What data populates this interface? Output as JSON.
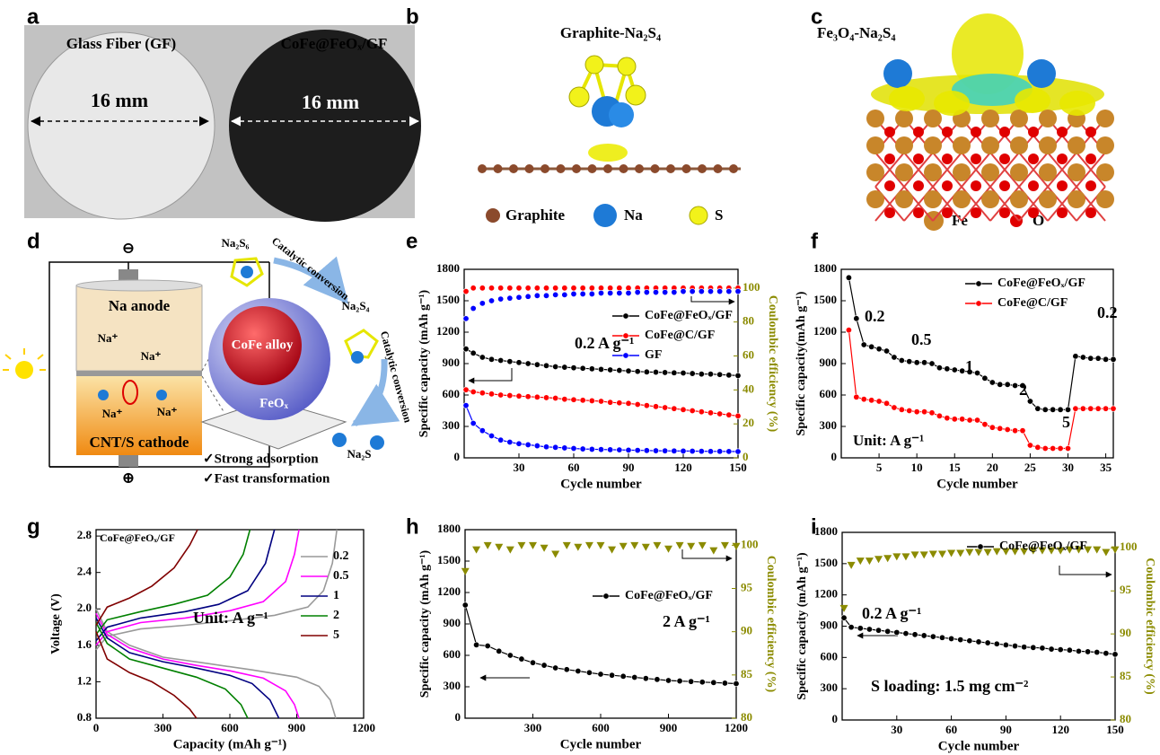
{
  "panel_labels": [
    "a",
    "b",
    "c",
    "d",
    "e",
    "f",
    "g",
    "h",
    "i"
  ],
  "panel_a": {
    "left_label": "Glass Fiber (GF)",
    "right_label": "CoFe@FeOₓ/GF",
    "left_size": "16 mm",
    "right_size": "16 mm"
  },
  "panel_b": {
    "title": "Graphite-Na₂S₄",
    "legend": [
      "Graphite",
      "Na",
      "S"
    ]
  },
  "panel_c": {
    "title": "Fe₃O₄-Na₂S₄",
    "legend": [
      "Fe",
      "O"
    ]
  },
  "panel_d": {
    "anode": "Na anode",
    "cathode": "CNT/S cathode",
    "ions": [
      "Na⁺",
      "Na⁺",
      "Na⁺",
      "Na⁺"
    ],
    "minus": "⊖",
    "plus": "⊕",
    "species": [
      "Na₂S₆",
      "Na₂S₄",
      "Na₂S"
    ],
    "steps": [
      "Catalytic conversion",
      "Catalytic conversion"
    ],
    "core": "CoFe alloy",
    "shell": "FeOₓ",
    "features": [
      "✓Strong adsorption",
      "✓Fast transformation"
    ]
  },
  "chart_data": [
    {
      "type": "line",
      "xlabel": "Cycle number",
      "ylabel": "Specific capacity (mAh g⁻¹)",
      "y2label": "Coulombic efficiency (%)",
      "y2color": "#8b8b00",
      "xlim": [
        0,
        150
      ],
      "xticks": [
        30,
        60,
        90,
        120,
        150
      ],
      "ylim": [
        0,
        1800
      ],
      "yticks": [
        0,
        300,
        600,
        900,
        1200,
        1500,
        1800
      ],
      "y2lim": [
        0,
        111
      ],
      "y2ticks": [
        0,
        20,
        40,
        60,
        80,
        100
      ],
      "legend": "center right",
      "annotations": [
        "0.2 A g⁻¹"
      ],
      "x": [
        1,
        5,
        10,
        15,
        20,
        25,
        30,
        35,
        40,
        45,
        50,
        55,
        60,
        65,
        70,
        75,
        80,
        85,
        90,
        95,
        100,
        105,
        110,
        115,
        120,
        125,
        130,
        135,
        140,
        145,
        150
      ],
      "series": [
        {
          "name": "CoFe@FeOₓ/GF",
          "color": "#000000",
          "marker": "circle",
          "values": [
            1040,
            1000,
            960,
            940,
            930,
            920,
            910,
            900,
            890,
            880,
            870,
            865,
            860,
            855,
            850,
            845,
            840,
            835,
            830,
            825,
            820,
            818,
            815,
            812,
            810,
            805,
            800,
            800,
            795,
            790,
            785
          ]
        },
        {
          "name": "CoFe@C/GF",
          "color": "#ff0000",
          "marker": "circle",
          "values": [
            650,
            630,
            620,
            610,
            600,
            595,
            590,
            585,
            580,
            575,
            570,
            560,
            555,
            550,
            545,
            540,
            530,
            525,
            520,
            510,
            500,
            490,
            480,
            470,
            460,
            450,
            440,
            430,
            420,
            410,
            400
          ]
        },
        {
          "name": "GF",
          "color": "#0000ff",
          "marker": "circle",
          "values": [
            500,
            330,
            260,
            210,
            170,
            150,
            135,
            125,
            115,
            105,
            100,
            95,
            90,
            85,
            82,
            80,
            78,
            76,
            74,
            72,
            70,
            68,
            67,
            66,
            65,
            64,
            63,
            62,
            62,
            61,
            60
          ]
        },
        {
          "color": "#ff0000",
          "axis": "y2",
          "marker": "circle",
          "line": false,
          "values": [
            98,
            100,
            100,
            100,
            100,
            100,
            100,
            100,
            100,
            100,
            100,
            100,
            100,
            100,
            100,
            100,
            100,
            100,
            100,
            100,
            100,
            100,
            100,
            100,
            100,
            100,
            100,
            100,
            100,
            100,
            100
          ]
        },
        {
          "color": "#0000ff",
          "axis": "y2",
          "marker": "circle",
          "line": false,
          "values": [
            82,
            88,
            91,
            92.5,
            93.5,
            94,
            94.5,
            95,
            95.5,
            95.5,
            96,
            96,
            96.5,
            96.5,
            96.5,
            97,
            97,
            97,
            97,
            97.5,
            97.5,
            97.5,
            97.5,
            97.5,
            98,
            98,
            98,
            98,
            98,
            98,
            98
          ]
        }
      ]
    },
    {
      "type": "line",
      "xlabel": "Cycle number",
      "ylabel": "Specific capacity(mAh g⁻¹)",
      "xlim": [
        0,
        36
      ],
      "xticks": [
        5,
        10,
        15,
        20,
        25,
        30,
        35
      ],
      "ylim": [
        0,
        1800
      ],
      "yticks": [
        0,
        300,
        600,
        900,
        1200,
        1500,
        1800
      ],
      "legend": "upper right",
      "annotations": [
        "0.2",
        "0.5",
        "1",
        "2",
        "5",
        "0.2",
        "Unit: A g⁻¹"
      ],
      "x": [
        1,
        2,
        3,
        4,
        5,
        6,
        7,
        8,
        9,
        10,
        11,
        12,
        13,
        14,
        15,
        16,
        17,
        18,
        19,
        20,
        21,
        22,
        23,
        24,
        25,
        26,
        27,
        28,
        29,
        30,
        31,
        32,
        33,
        34,
        35,
        36
      ],
      "series": [
        {
          "name": "CoFe@FeOₓ/GF",
          "color": "#000000",
          "marker": "circle",
          "values": [
            1720,
            1330,
            1080,
            1060,
            1040,
            1020,
            960,
            930,
            920,
            910,
            910,
            900,
            860,
            850,
            840,
            830,
            820,
            810,
            760,
            720,
            700,
            700,
            690,
            690,
            540,
            470,
            460,
            460,
            460,
            460,
            970,
            960,
            950,
            950,
            940,
            940
          ]
        },
        {
          "name": "CoFe@C/GF",
          "color": "#ff0000",
          "marker": "circle",
          "values": [
            1220,
            580,
            560,
            550,
            540,
            520,
            480,
            460,
            450,
            440,
            440,
            430,
            400,
            380,
            370,
            370,
            360,
            360,
            320,
            290,
            280,
            270,
            260,
            260,
            120,
            100,
            90,
            90,
            90,
            90,
            470,
            470,
            470,
            470,
            470,
            470
          ]
        }
      ]
    },
    {
      "type": "line",
      "xlabel": "Capacity (mAh g⁻¹)",
      "ylabel": "Voltage (V)",
      "xlim": [
        0,
        1200
      ],
      "xticks": [
        0,
        300,
        600,
        900,
        1200
      ],
      "ylim": [
        0.8,
        2.87
      ],
      "yticks": [
        0.8,
        1.2,
        1.6,
        {
          "value": 2,
          "label": "2.0"
        },
        2.4,
        2.8
      ],
      "legend": "center right",
      "annotations": [
        "CoFe@FeOₓ/GF",
        "Unit: A g⁻¹"
      ],
      "series": [
        {
          "name": "0.2",
          "color": "#999999",
          "marker": "none",
          "x": [
            0,
            50,
            150,
            300,
            500,
            700,
            900,
            1000,
            1050,
            1075,
            null,
            0,
            50,
            200,
            400,
            600,
            800,
            950,
            1020,
            1060,
            1080
          ],
          "values": [
            2.0,
            1.75,
            1.6,
            1.47,
            1.4,
            1.33,
            1.25,
            1.15,
            1.0,
            0.8,
            null,
            1.55,
            1.7,
            1.78,
            1.82,
            1.87,
            1.93,
            2.02,
            2.2,
            2.5,
            2.87
          ]
        },
        {
          "name": "0.5",
          "color": "#ff00ff",
          "marker": "none",
          "x": [
            0,
            50,
            150,
            300,
            450,
            600,
            750,
            850,
            890,
            910,
            null,
            0,
            50,
            200,
            400,
            600,
            750,
            850,
            890,
            910
          ],
          "values": [
            1.95,
            1.72,
            1.57,
            1.45,
            1.38,
            1.32,
            1.24,
            1.1,
            0.95,
            0.8,
            null,
            1.6,
            1.75,
            1.85,
            1.9,
            1.98,
            2.08,
            2.3,
            2.6,
            2.87
          ]
        },
        {
          "name": "1",
          "color": "#000080",
          "marker": "none",
          "x": [
            0,
            50,
            150,
            300,
            450,
            600,
            700,
            780,
            820,
            null,
            0,
            50,
            200,
            400,
            550,
            680,
            760,
            800
          ],
          "values": [
            1.9,
            1.68,
            1.52,
            1.42,
            1.35,
            1.27,
            1.18,
            1.0,
            0.8,
            null,
            1.65,
            1.8,
            1.9,
            1.97,
            2.05,
            2.2,
            2.5,
            2.87
          ]
        },
        {
          "name": "2",
          "color": "#008000",
          "marker": "none",
          "x": [
            0,
            50,
            150,
            300,
            450,
            580,
            650,
            680,
            null,
            0,
            50,
            200,
            350,
            500,
            600,
            660,
            690
          ],
          "values": [
            1.85,
            1.62,
            1.45,
            1.35,
            1.25,
            1.12,
            0.95,
            0.8,
            null,
            1.72,
            1.88,
            1.97,
            2.05,
            2.15,
            2.35,
            2.6,
            2.87
          ]
        },
        {
          "name": "5",
          "color": "#800000",
          "marker": "none",
          "x": [
            0,
            50,
            150,
            250,
            350,
            420,
            450,
            null,
            0,
            50,
            150,
            250,
            350,
            420,
            455
          ],
          "values": [
            1.75,
            1.45,
            1.3,
            1.2,
            1.05,
            0.9,
            0.8,
            null,
            1.82,
            2.02,
            2.12,
            2.25,
            2.45,
            2.7,
            2.87
          ]
        }
      ]
    },
    {
      "type": "line",
      "xlabel": "Cycle number",
      "ylabel": "Specific capacity (mAh g⁻¹)",
      "y2label": "Coulombic efficiency (%)",
      "y2color": "#8b8b00",
      "xlim": [
        0,
        1200
      ],
      "xticks": [
        300,
        600,
        900,
        1200
      ],
      "ylim": [
        0,
        1800
      ],
      "yticks": [
        0,
        300,
        600,
        900,
        1200,
        1500,
        1800
      ],
      "y2lim": [
        80,
        101.8
      ],
      "y2ticks": [
        80,
        85,
        90,
        95,
        100
      ],
      "legend": "center right",
      "annotations": [
        "2 A g⁻¹"
      ],
      "x": [
        1,
        50,
        100,
        150,
        200,
        250,
        300,
        350,
        400,
        450,
        500,
        550,
        600,
        650,
        700,
        750,
        800,
        850,
        900,
        950,
        1000,
        1050,
        1100,
        1150,
        1200
      ],
      "series": [
        {
          "name": "CoFe@FeOₓ/GF",
          "color": "#000000",
          "marker": "circle",
          "values": [
            1080,
            700,
            690,
            640,
            600,
            565,
            530,
            505,
            480,
            465,
            450,
            435,
            420,
            410,
            400,
            390,
            380,
            370,
            360,
            355,
            350,
            345,
            340,
            335,
            330
          ]
        },
        {
          "color": "#8b8b00",
          "axis": "y2",
          "marker": "triangle",
          "line": false,
          "values": [
            97,
            99.5,
            100,
            99.8,
            99.5,
            100,
            100,
            99.7,
            99,
            100,
            99.8,
            100,
            100,
            99.5,
            99.9,
            100,
            99.8,
            100,
            99.6,
            100,
            99.9,
            100,
            99.4,
            100,
            99.9
          ]
        }
      ]
    },
    {
      "type": "line",
      "xlabel": "Cycle number",
      "ylabel": "Specific capacity (mAh g⁻¹)",
      "y2label": "Coulombic efficiency (%)",
      "y2color": "#8b8b00",
      "xlim": [
        0,
        150
      ],
      "xticks": [
        30,
        60,
        90,
        120,
        150
      ],
      "ylim": [
        0,
        1800
      ],
      "yticks": [
        0,
        300,
        600,
        900,
        1200,
        1500,
        1800
      ],
      "y2lim": [
        80,
        101.8
      ],
      "y2ticks": [
        80,
        85,
        90,
        95,
        100
      ],
      "legend": "upper right",
      "annotations": [
        "0.2 A g⁻¹",
        "S loading: 1.5 mg cm⁻²"
      ],
      "x": [
        1,
        5,
        10,
        15,
        20,
        25,
        30,
        35,
        40,
        45,
        50,
        55,
        60,
        65,
        70,
        75,
        80,
        85,
        90,
        95,
        100,
        105,
        110,
        115,
        120,
        125,
        130,
        135,
        140,
        145,
        150
      ],
      "series": [
        {
          "name": "CoFe@FeOₓ/GF",
          "color": "#000000",
          "marker": "circle",
          "values": [
            980,
            890,
            880,
            870,
            860,
            850,
            840,
            830,
            820,
            810,
            800,
            790,
            780,
            770,
            760,
            750,
            740,
            730,
            720,
            710,
            700,
            695,
            690,
            680,
            675,
            670,
            660,
            655,
            650,
            640,
            630
          ]
        },
        {
          "color": "#8b8b00",
          "axis": "y2",
          "marker": "triangle",
          "line": false,
          "values": [
            93,
            98,
            98.5,
            98.5,
            98.7,
            98.8,
            99,
            99,
            99.2,
            99.2,
            99.3,
            99.3,
            99.4,
            99.4,
            99.5,
            99.5,
            99.5,
            99.6,
            99.6,
            99.6,
            99.6,
            99.7,
            99.7,
            99.7,
            99.7,
            99.8,
            99.8,
            99.8,
            99.8,
            99.5,
            99.8
          ]
        }
      ]
    }
  ]
}
